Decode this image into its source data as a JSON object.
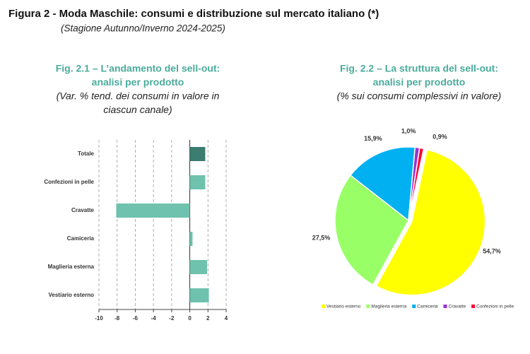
{
  "header": {
    "title": "Figura 2 - Moda Maschile: consumi e distribuzione sul mercato italiano (*)",
    "subtitle": "(Stagione Autunno/Inverno 2024-2025)"
  },
  "chart_data": [
    {
      "type": "hbar",
      "title": [
        "Fig. 2.1 – L’andamento del sell-out:",
        "analisi per prodotto"
      ],
      "subtitle": [
        "(Var. % tend. dei consumi in valore in",
        "ciascun canale)"
      ],
      "categories": [
        "Totale",
        "Confezioni in pelle",
        "Cravatte",
        "Camiceria",
        "Maglieria esterna",
        "Vestiario esterno"
      ],
      "values": [
        1.7,
        1.7,
        -8.1,
        0.3,
        1.9,
        2.1
      ],
      "colors": [
        "#3b7d70",
        "#6fc2ad",
        "#6fc2ad",
        "#6fc2ad",
        "#6fc2ad",
        "#6fc2ad"
      ],
      "xlim": [
        -10,
        4
      ],
      "xticks": [
        -10,
        -8,
        -6,
        -4,
        -2,
        0,
        2,
        4
      ],
      "grid": true
    },
    {
      "type": "pie",
      "title": [
        "Fig. 2.2 – La struttura del sell-out:",
        "analisi per prodotto"
      ],
      "subtitle": [
        "(% sui consumi complessivi in valore)"
      ],
      "categories": [
        "Vestiario esterno",
        "Maglieria esterna",
        "Camiceria",
        "Cravatte",
        "Confezioni in pelle"
      ],
      "values": [
        54.7,
        27.5,
        15.9,
        1.0,
        0.9
      ],
      "value_labels": [
        "54,7%",
        "27,5%",
        "15,9%",
        "1,0%",
        "0,9%"
      ],
      "colors": [
        "#ffff00",
        "#99ff66",
        "#00b0f0",
        "#9933cc",
        "#ff0033"
      ],
      "legend": "bottom"
    }
  ]
}
